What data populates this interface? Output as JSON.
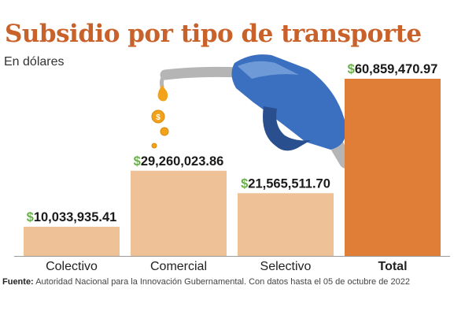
{
  "title": "Subsidio por tipo de transporte",
  "subtitle": "En dólares",
  "source_label": "Fuente:",
  "source_text": "Autoridad Nacional para la Innovación Gubernamental. Con datos hasta el 05 de octubre de 2022",
  "colors": {
    "title": "#c8622a",
    "bar_light": "#efc196",
    "bar_total": "#e07e38",
    "dollar_sign": "#6ab04c",
    "value_text": "#1a1a1a",
    "axis": "#9a9a9a",
    "pump_handle": "#3b6fc0",
    "pump_hose": "#b5b5b5",
    "coin": "#f2a31b"
  },
  "decoration": {
    "icon": "fuel-pump-nozzle-icon"
  },
  "chart_data": {
    "type": "bar",
    "title": "Subsidio por tipo de transporte",
    "subtitle": "En dólares",
    "categories": [
      "Colectivo",
      "Comercial",
      "Selectivo",
      "Total"
    ],
    "values": [
      10033935.41,
      29260023.86,
      21565511.7,
      60859470.97
    ],
    "value_labels": [
      "10,033,935.41",
      "29,260,023.86",
      "21,565,511.70",
      "60,859,470.97"
    ],
    "currency_symbol": "$",
    "highlight_category": "Total",
    "ylim": [
      0,
      60859470.97
    ],
    "xlabel": "",
    "ylabel": "",
    "grid": false,
    "legend": "none"
  }
}
